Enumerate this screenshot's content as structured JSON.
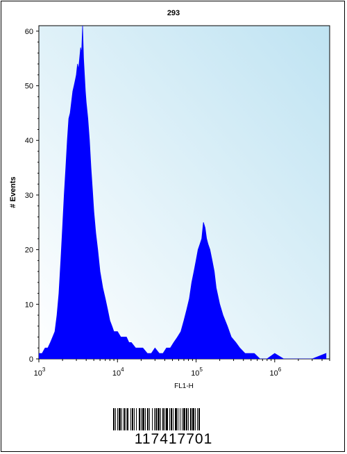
{
  "chart_data": {
    "type": "area",
    "title": "293",
    "xlabel": "FL1-H",
    "ylabel": "# Events",
    "x_scale": "log",
    "xlim": [
      1000,
      5000000
    ],
    "ylim": [
      0,
      61
    ],
    "y_ticks": [
      "0",
      "10",
      "20",
      "30",
      "40",
      "50",
      "60"
    ],
    "x_tick_labels": [
      {
        "base": "10",
        "exp": "3"
      },
      {
        "base": "10",
        "exp": "4"
      },
      {
        "base": "10",
        "exp": "5"
      },
      {
        "base": "10",
        "exp": "6"
      }
    ],
    "grid": false,
    "fill_color": "#0000ff",
    "plot_background": [
      "#ffffff",
      "#bfe3f2"
    ],
    "series": [
      {
        "x": [
          1000,
          1100,
          1200,
          1300,
          1400,
          1500,
          1600,
          1700,
          1800,
          1900,
          2000,
          2100,
          2200,
          2300,
          2400,
          2500,
          2600,
          2700,
          2800,
          2900,
          3000,
          3100,
          3200,
          3300,
          3400,
          3500,
          3600,
          3700,
          3800,
          3900,
          4000,
          4200,
          4400,
          4600,
          4800,
          5000,
          5300,
          5600,
          6000,
          6500,
          7000,
          7500,
          8000,
          8500,
          9000,
          10000,
          11000,
          12000,
          13000,
          14000,
          15000,
          17000,
          19000,
          21000,
          24000,
          27000,
          30000,
          34000,
          38000,
          42000,
          47000,
          52000,
          58000,
          64000,
          70000,
          76000,
          82000,
          88000,
          94000,
          100000,
          106000,
          112000,
          118000,
          124000,
          130000,
          136000,
          142000,
          150000,
          160000,
          170000,
          180000,
          200000,
          220000,
          250000,
          280000,
          320000,
          360000,
          420000,
          480000,
          550000,
          650000,
          800000,
          1000000,
          1300000,
          1700000,
          2200000,
          3000000,
          4500000
        ],
        "y": [
          1,
          1,
          2,
          2,
          3,
          4,
          5,
          8,
          12,
          18,
          24,
          30,
          35,
          40,
          44,
          45,
          47,
          49,
          50,
          51,
          52,
          54,
          53,
          55,
          57,
          56,
          61,
          55,
          52,
          49,
          47,
          44,
          40,
          35,
          31,
          27,
          23,
          20,
          16,
          13,
          11,
          9,
          7,
          6,
          5,
          5,
          4,
          4,
          4,
          3,
          3,
          2,
          2,
          2,
          1,
          1,
          2,
          1,
          1,
          2,
          2,
          3,
          4,
          5,
          7,
          9,
          11,
          14,
          16,
          18,
          20,
          21,
          22,
          25,
          24,
          22,
          21,
          20,
          18,
          16,
          13,
          10,
          8,
          6,
          4,
          3,
          2,
          1,
          1,
          1,
          0,
          0,
          1,
          0,
          0,
          0,
          0,
          1
        ]
      }
    ]
  },
  "barcode": {
    "number": "117417701"
  }
}
